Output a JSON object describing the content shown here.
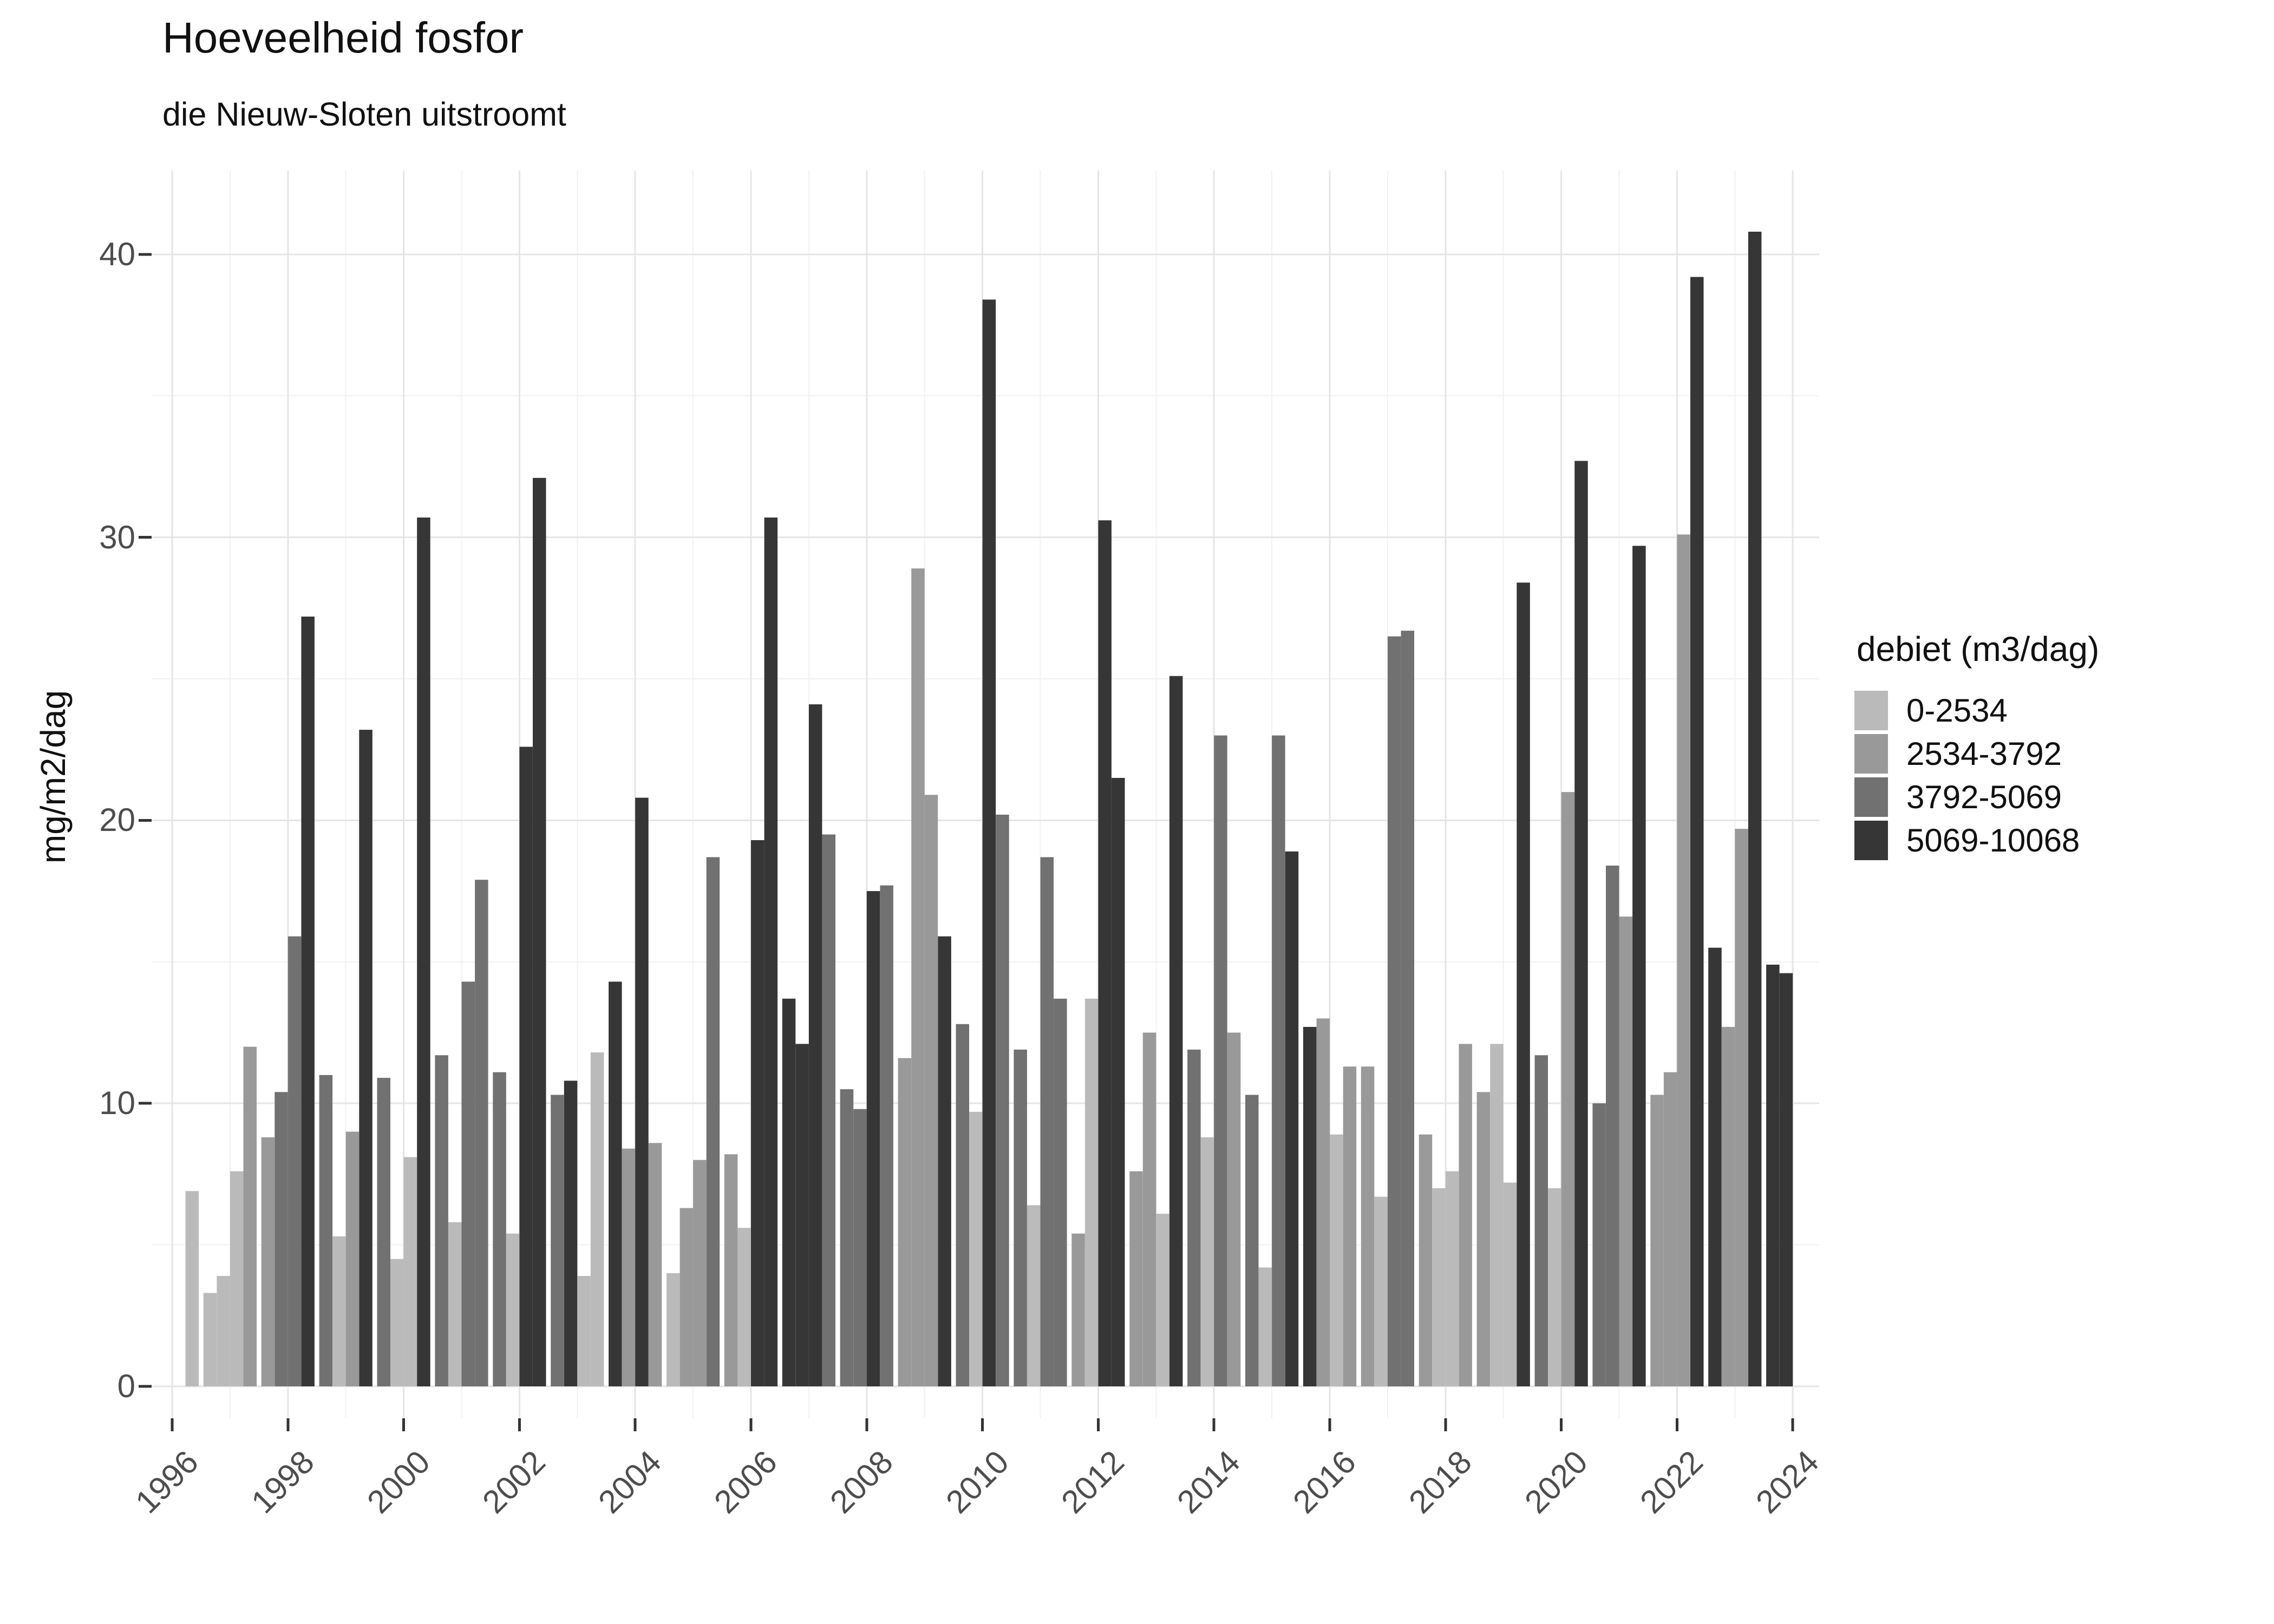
{
  "chart_data": {
    "type": "bar",
    "title": "Hoeveelheid fosfor",
    "subtitle": "die Nieuw-Sloten uitstroomt",
    "ylabel": "mg/m2/dag",
    "xlabel": "",
    "ylim": [
      0,
      43
    ],
    "y_ticks": [
      0,
      10,
      20,
      30,
      40
    ],
    "x_ticks": [
      1996,
      1998,
      2000,
      2002,
      2004,
      2006,
      2008,
      2010,
      2012,
      2014,
      2016,
      2018,
      2020,
      2022,
      2024
    ],
    "grid": "white panel, light grey major gridlines (every 2 years / every 10 units) and minor gridlines (odd years / every 5 units)",
    "legend": {
      "title": "debiet (m3/dag)",
      "position": "right",
      "items": [
        {
          "label": "0-2534",
          "color": "#bababa"
        },
        {
          "label": "2534-3792",
          "color": "#999999"
        },
        {
          "label": "3792-5069",
          "color": "#717171"
        },
        {
          "label": "5069-10068",
          "color": "#363636"
        }
      ]
    },
    "bars": [
      {
        "year": 1996,
        "q": 2,
        "value": 6.9,
        "debiet": "0-2534"
      },
      {
        "year": 1996,
        "q": 3,
        "value": 3.3,
        "debiet": "0-2534"
      },
      {
        "year": 1996,
        "q": 4,
        "value": 3.9,
        "debiet": "0-2534"
      },
      {
        "year": 1997,
        "q": 1,
        "value": 7.6,
        "debiet": "0-2534"
      },
      {
        "year": 1997,
        "q": 2,
        "value": 12.0,
        "debiet": "2534-3792"
      },
      {
        "year": 1997,
        "q": 3,
        "value": 8.8,
        "debiet": "2534-3792"
      },
      {
        "year": 1997,
        "q": 4,
        "value": 10.4,
        "debiet": "3792-5069"
      },
      {
        "year": 1998,
        "q": 1,
        "value": 15.9,
        "debiet": "3792-5069"
      },
      {
        "year": 1998,
        "q": 2,
        "value": 27.2,
        "debiet": "5069-10068"
      },
      {
        "year": 1998,
        "q": 3,
        "value": 11.0,
        "debiet": "3792-5069"
      },
      {
        "year": 1998,
        "q": 4,
        "value": 5.3,
        "debiet": "0-2534"
      },
      {
        "year": 1999,
        "q": 1,
        "value": 9.0,
        "debiet": "2534-3792"
      },
      {
        "year": 1999,
        "q": 2,
        "value": 23.2,
        "debiet": "5069-10068"
      },
      {
        "year": 1999,
        "q": 3,
        "value": 10.9,
        "debiet": "3792-5069"
      },
      {
        "year": 1999,
        "q": 4,
        "value": 4.5,
        "debiet": "0-2534"
      },
      {
        "year": 2000,
        "q": 1,
        "value": 8.1,
        "debiet": "0-2534"
      },
      {
        "year": 2000,
        "q": 2,
        "value": 30.7,
        "debiet": "5069-10068"
      },
      {
        "year": 2000,
        "q": 3,
        "value": 11.7,
        "debiet": "3792-5069"
      },
      {
        "year": 2000,
        "q": 4,
        "value": 5.8,
        "debiet": "0-2534"
      },
      {
        "year": 2001,
        "q": 1,
        "value": 14.3,
        "debiet": "3792-5069"
      },
      {
        "year": 2001,
        "q": 2,
        "value": 17.9,
        "debiet": "3792-5069"
      },
      {
        "year": 2001,
        "q": 3,
        "value": 11.1,
        "debiet": "3792-5069"
      },
      {
        "year": 2001,
        "q": 4,
        "value": 5.4,
        "debiet": "0-2534"
      },
      {
        "year": 2002,
        "q": 1,
        "value": 22.6,
        "debiet": "5069-10068"
      },
      {
        "year": 2002,
        "q": 2,
        "value": 32.1,
        "debiet": "5069-10068"
      },
      {
        "year": 2002,
        "q": 3,
        "value": 10.3,
        "debiet": "3792-5069"
      },
      {
        "year": 2002,
        "q": 4,
        "value": 10.8,
        "debiet": "5069-10068"
      },
      {
        "year": 2003,
        "q": 1,
        "value": 3.9,
        "debiet": "0-2534"
      },
      {
        "year": 2003,
        "q": 2,
        "value": 11.8,
        "debiet": "0-2534"
      },
      {
        "year": 2003,
        "q": 3,
        "value": 14.3,
        "debiet": "5069-10068"
      },
      {
        "year": 2003,
        "q": 4,
        "value": 8.4,
        "debiet": "2534-3792"
      },
      {
        "year": 2004,
        "q": 1,
        "value": 20.8,
        "debiet": "5069-10068"
      },
      {
        "year": 2004,
        "q": 2,
        "value": 8.6,
        "debiet": "2534-3792"
      },
      {
        "year": 2004,
        "q": 3,
        "value": 4.0,
        "debiet": "0-2534"
      },
      {
        "year": 2004,
        "q": 4,
        "value": 6.3,
        "debiet": "2534-3792"
      },
      {
        "year": 2005,
        "q": 1,
        "value": 8.0,
        "debiet": "2534-3792"
      },
      {
        "year": 2005,
        "q": 2,
        "value": 18.7,
        "debiet": "3792-5069"
      },
      {
        "year": 2005,
        "q": 3,
        "value": 8.2,
        "debiet": "2534-3792"
      },
      {
        "year": 2005,
        "q": 4,
        "value": 5.6,
        "debiet": "0-2534"
      },
      {
        "year": 2006,
        "q": 1,
        "value": 19.3,
        "debiet": "5069-10068"
      },
      {
        "year": 2006,
        "q": 2,
        "value": 30.7,
        "debiet": "5069-10068"
      },
      {
        "year": 2006,
        "q": 3,
        "value": 13.7,
        "debiet": "5069-10068"
      },
      {
        "year": 2006,
        "q": 4,
        "value": 12.1,
        "debiet": "5069-10068"
      },
      {
        "year": 2007,
        "q": 1,
        "value": 24.1,
        "debiet": "5069-10068"
      },
      {
        "year": 2007,
        "q": 2,
        "value": 19.5,
        "debiet": "3792-5069"
      },
      {
        "year": 2007,
        "q": 3,
        "value": 10.5,
        "debiet": "3792-5069"
      },
      {
        "year": 2007,
        "q": 4,
        "value": 9.8,
        "debiet": "3792-5069"
      },
      {
        "year": 2008,
        "q": 1,
        "value": 17.5,
        "debiet": "5069-10068"
      },
      {
        "year": 2008,
        "q": 2,
        "value": 17.7,
        "debiet": "3792-5069"
      },
      {
        "year": 2008,
        "q": 3,
        "value": 11.6,
        "debiet": "2534-3792"
      },
      {
        "year": 2008,
        "q": 4,
        "value": 28.9,
        "debiet": "2534-3792"
      },
      {
        "year": 2009,
        "q": 1,
        "value": 20.9,
        "debiet": "2534-3792"
      },
      {
        "year": 2009,
        "q": 2,
        "value": 15.9,
        "debiet": "5069-10068"
      },
      {
        "year": 2009,
        "q": 3,
        "value": 12.8,
        "debiet": "3792-5069"
      },
      {
        "year": 2009,
        "q": 4,
        "value": 9.7,
        "debiet": "0-2534"
      },
      {
        "year": 2010,
        "q": 1,
        "value": 38.4,
        "debiet": "5069-10068"
      },
      {
        "year": 2010,
        "q": 2,
        "value": 20.2,
        "debiet": "3792-5069"
      },
      {
        "year": 2010,
        "q": 3,
        "value": 11.9,
        "debiet": "3792-5069"
      },
      {
        "year": 2010,
        "q": 4,
        "value": 6.4,
        "debiet": "0-2534"
      },
      {
        "year": 2011,
        "q": 1,
        "value": 18.7,
        "debiet": "3792-5069"
      },
      {
        "year": 2011,
        "q": 2,
        "value": 13.7,
        "debiet": "3792-5069"
      },
      {
        "year": 2011,
        "q": 3,
        "value": 5.4,
        "debiet": "2534-3792"
      },
      {
        "year": 2011,
        "q": 4,
        "value": 13.7,
        "debiet": "0-2534"
      },
      {
        "year": 2012,
        "q": 1,
        "value": 30.6,
        "debiet": "5069-10068"
      },
      {
        "year": 2012,
        "q": 2,
        "value": 21.5,
        "debiet": "5069-10068"
      },
      {
        "year": 2012,
        "q": 3,
        "value": 7.6,
        "debiet": "2534-3792"
      },
      {
        "year": 2012,
        "q": 4,
        "value": 12.5,
        "debiet": "2534-3792"
      },
      {
        "year": 2013,
        "q": 1,
        "value": 6.1,
        "debiet": "0-2534"
      },
      {
        "year": 2013,
        "q": 2,
        "value": 25.1,
        "debiet": "5069-10068"
      },
      {
        "year": 2013,
        "q": 3,
        "value": 11.9,
        "debiet": "3792-5069"
      },
      {
        "year": 2013,
        "q": 4,
        "value": 8.8,
        "debiet": "0-2534"
      },
      {
        "year": 2014,
        "q": 1,
        "value": 23.0,
        "debiet": "3792-5069"
      },
      {
        "year": 2014,
        "q": 2,
        "value": 12.5,
        "debiet": "2534-3792"
      },
      {
        "year": 2014,
        "q": 3,
        "value": 10.3,
        "debiet": "3792-5069"
      },
      {
        "year": 2014,
        "q": 4,
        "value": 4.2,
        "debiet": "0-2534"
      },
      {
        "year": 2015,
        "q": 1,
        "value": 23.0,
        "debiet": "3792-5069"
      },
      {
        "year": 2015,
        "q": 2,
        "value": 18.9,
        "debiet": "5069-10068"
      },
      {
        "year": 2015,
        "q": 3,
        "value": 12.7,
        "debiet": "5069-10068"
      },
      {
        "year": 2015,
        "q": 4,
        "value": 13.0,
        "debiet": "2534-3792"
      },
      {
        "year": 2016,
        "q": 1,
        "value": 8.9,
        "debiet": "0-2534"
      },
      {
        "year": 2016,
        "q": 2,
        "value": 11.3,
        "debiet": "2534-3792"
      },
      {
        "year": 2016,
        "q": 3,
        "value": 11.3,
        "debiet": "2534-3792"
      },
      {
        "year": 2016,
        "q": 4,
        "value": 6.7,
        "debiet": "0-2534"
      },
      {
        "year": 2017,
        "q": 1,
        "value": 26.5,
        "debiet": "3792-5069"
      },
      {
        "year": 2017,
        "q": 2,
        "value": 26.7,
        "debiet": "3792-5069"
      },
      {
        "year": 2017,
        "q": 3,
        "value": 8.9,
        "debiet": "2534-3792"
      },
      {
        "year": 2017,
        "q": 4,
        "value": 7.0,
        "debiet": "0-2534"
      },
      {
        "year": 2018,
        "q": 1,
        "value": 7.6,
        "debiet": "0-2534"
      },
      {
        "year": 2018,
        "q": 2,
        "value": 12.1,
        "debiet": "2534-3792"
      },
      {
        "year": 2018,
        "q": 3,
        "value": 10.4,
        "debiet": "2534-3792"
      },
      {
        "year": 2018,
        "q": 4,
        "value": 12.1,
        "debiet": "0-2534"
      },
      {
        "year": 2019,
        "q": 1,
        "value": 7.2,
        "debiet": "0-2534"
      },
      {
        "year": 2019,
        "q": 2,
        "value": 28.4,
        "debiet": "5069-10068"
      },
      {
        "year": 2019,
        "q": 3,
        "value": 11.7,
        "debiet": "3792-5069"
      },
      {
        "year": 2019,
        "q": 4,
        "value": 7.0,
        "debiet": "0-2534"
      },
      {
        "year": 2020,
        "q": 1,
        "value": 21.0,
        "debiet": "2534-3792"
      },
      {
        "year": 2020,
        "q": 2,
        "value": 32.7,
        "debiet": "5069-10068"
      },
      {
        "year": 2020,
        "q": 3,
        "value": 10.0,
        "debiet": "3792-5069"
      },
      {
        "year": 2020,
        "q": 4,
        "value": 18.4,
        "debiet": "3792-5069"
      },
      {
        "year": 2021,
        "q": 1,
        "value": 16.6,
        "debiet": "2534-3792"
      },
      {
        "year": 2021,
        "q": 2,
        "value": 29.7,
        "debiet": "5069-10068"
      },
      {
        "year": 2021,
        "q": 3,
        "value": 10.3,
        "debiet": "2534-3792"
      },
      {
        "year": 2021,
        "q": 4,
        "value": 11.1,
        "debiet": "2534-3792"
      },
      {
        "year": 2022,
        "q": 1,
        "value": 30.1,
        "debiet": "2534-3792"
      },
      {
        "year": 2022,
        "q": 2,
        "value": 39.2,
        "debiet": "5069-10068"
      },
      {
        "year": 2022,
        "q": 3,
        "value": 15.5,
        "debiet": "5069-10068"
      },
      {
        "year": 2022,
        "q": 4,
        "value": 12.7,
        "debiet": "2534-3792"
      },
      {
        "year": 2023,
        "q": 1,
        "value": 19.7,
        "debiet": "2534-3792"
      },
      {
        "year": 2023,
        "q": 2,
        "value": 40.8,
        "debiet": "5069-10068"
      },
      {
        "year": 2023,
        "q": 3,
        "value": 14.9,
        "debiet": "5069-10068"
      },
      {
        "year": 2023,
        "q": 4,
        "value": 14.6,
        "debiet": "5069-10068"
      }
    ]
  }
}
